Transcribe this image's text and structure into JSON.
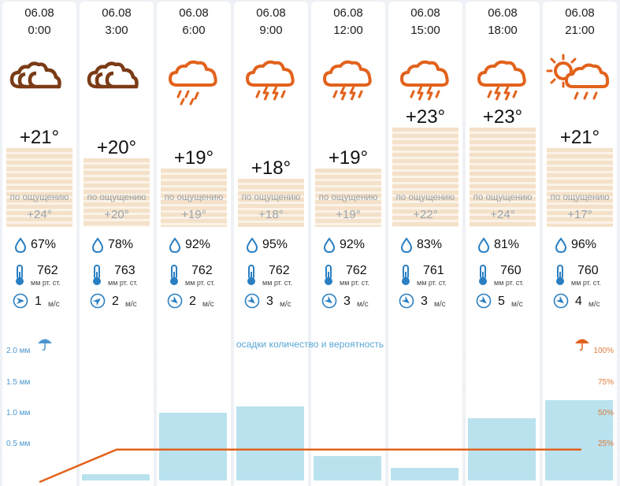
{
  "forecast": {
    "columns": [
      {
        "date": "06.08",
        "time": "0:00",
        "icon": "cloudy-icon",
        "temp": "+21°",
        "temp_value": 21,
        "feels_label": "по ощущению",
        "feels": "+24°",
        "humidity": "67%",
        "pressure": "762",
        "pressure_unit": "мм рт. ст.",
        "wind": "1",
        "wind_unit": "м/с",
        "wind_direction": "west",
        "precip_mm": 0
      },
      {
        "date": "06.08",
        "time": "3:00",
        "icon": "cloudy-icon",
        "temp": "+20°",
        "temp_value": 20,
        "feels_label": "по ощущению",
        "feels": "+20°",
        "humidity": "78%",
        "pressure": "763",
        "pressure_unit": "мм рт. ст.",
        "wind": "2",
        "wind_unit": "м/с",
        "wind_direction": "north-west",
        "precip_mm": 0.1
      },
      {
        "date": "06.08",
        "time": "6:00",
        "icon": "rain-cloud-icon",
        "temp": "+19°",
        "temp_value": 19,
        "feels_label": "по ощущению",
        "feels": "+19°",
        "humidity": "92%",
        "pressure": "762",
        "pressure_unit": "мм рт. ст.",
        "wind": "2",
        "wind_unit": "м/с",
        "wind_direction": "south-west",
        "precip_mm": 1.1
      },
      {
        "date": "06.08",
        "time": "9:00",
        "icon": "thunderstorm-icon",
        "temp": "+18°",
        "temp_value": 18,
        "feels_label": "по ощущению",
        "feels": "+18°",
        "humidity": "95%",
        "pressure": "762",
        "pressure_unit": "мм рт. ст.",
        "wind": "3",
        "wind_unit": "м/с",
        "wind_direction": "south-west",
        "precip_mm": 1.2
      },
      {
        "date": "06.08",
        "time": "12:00",
        "icon": "thunderstorm-icon",
        "temp": "+19°",
        "temp_value": 19,
        "feels_label": "по ощущению",
        "feels": "+19°",
        "humidity": "92%",
        "pressure": "762",
        "pressure_unit": "мм рт. ст.",
        "wind": "3",
        "wind_unit": "м/с",
        "wind_direction": "south-west",
        "precip_mm": 0.4
      },
      {
        "date": "06.08",
        "time": "15:00",
        "icon": "thunderstorm-icon",
        "temp": "+23°",
        "temp_value": 23,
        "feels_label": "по ощущению",
        "feels": "+22°",
        "humidity": "83%",
        "pressure": "761",
        "pressure_unit": "мм рт. ст.",
        "wind": "3",
        "wind_unit": "м/с",
        "wind_direction": "south-west",
        "precip_mm": 0.2
      },
      {
        "date": "06.08",
        "time": "18:00",
        "icon": "thunderstorm-icon",
        "temp": "+23°",
        "temp_value": 23,
        "feels_label": "по ощущению",
        "feels": "+24°",
        "humidity": "81%",
        "pressure": "760",
        "pressure_unit": "мм рт. ст.",
        "wind": "5",
        "wind_unit": "м/с",
        "wind_direction": "south-west",
        "precip_mm": 1.0
      },
      {
        "date": "06.08",
        "time": "21:00",
        "icon": "sun-rain-cloud-icon",
        "temp": "+21°",
        "temp_value": 21,
        "feels_label": "по ощущению",
        "feels": "+17°",
        "humidity": "96%",
        "pressure": "760",
        "pressure_unit": "мм рт. ст.",
        "wind": "4",
        "wind_unit": "м/с",
        "wind_direction": "south-west",
        "precip_mm": 1.3
      }
    ]
  },
  "precip_chart": {
    "title": "осадки  количество и вероятность",
    "left_axis": [
      "2.0 мм",
      "1.5 мм",
      "1.0 мм",
      "0.5 мм"
    ],
    "right_axis": [
      "100%",
      "75%",
      "50%",
      "25%"
    ],
    "probability_percent": [
      0,
      25,
      25,
      25,
      25,
      25,
      25,
      25
    ],
    "left_icon": "umbrella-icon",
    "right_icon": "umbrella-icon"
  },
  "colors": {
    "cloud_brown": "#7a3b16",
    "storm_orange": "#e2621c",
    "rain_blue": "#b9e2ee",
    "prob_line": "#e2621c",
    "axis_blue": "#4a97cf",
    "axis_orange": "#e07a3a"
  }
}
